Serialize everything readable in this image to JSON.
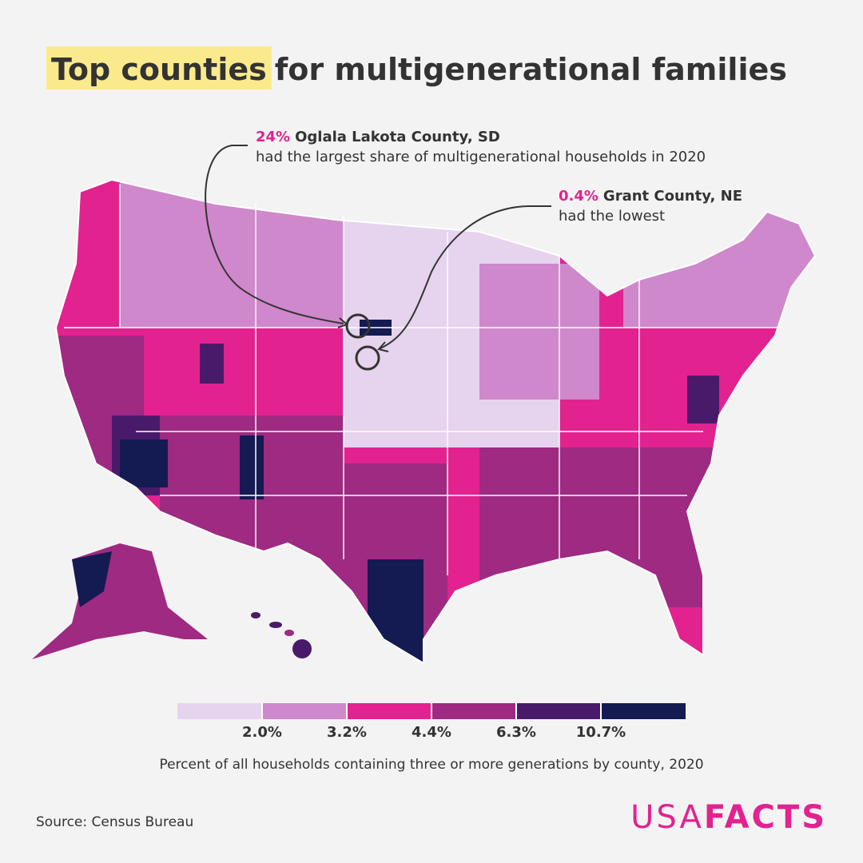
{
  "title": {
    "highlight": "Top counties",
    "rest": "for multigenerational families"
  },
  "annotations": [
    {
      "share": "24%",
      "name": "Oglala Lakota County, SD",
      "note": "had the largest share of multigenerational households in 2020"
    },
    {
      "share": "0.4%",
      "name": "Grant County, NE",
      "note": "had the lowest"
    }
  ],
  "legend": {
    "colors": [
      "#e6d3ee",
      "#cf88cb",
      "#e2228f",
      "#9e2a82",
      "#4a1a6a",
      "#141a52"
    ],
    "breaks": [
      {
        "value": 2.0,
        "label": "2.0%"
      },
      {
        "value": 3.2,
        "label": "3.2%"
      },
      {
        "value": 4.4,
        "label": "4.4%"
      },
      {
        "value": 6.3,
        "label": "6.3%"
      },
      {
        "value": 10.7,
        "label": "10.7%"
      }
    ],
    "caption": "Percent of all households containing three or more generations by county, 2020"
  },
  "source": "Source: Census Bureau",
  "logo": {
    "light": "USA",
    "bold": "FACTS"
  }
}
